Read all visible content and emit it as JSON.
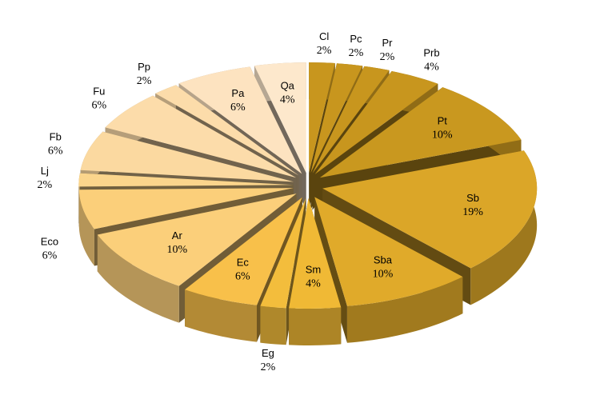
{
  "chart_data": {
    "type": "pie3d",
    "categories": [
      "Cl",
      "Pc",
      "Pr",
      "Prb",
      "Pt",
      "Sb",
      "Sba",
      "Sm",
      "Eg",
      "Ec",
      "Ar",
      "Eco",
      "Lj",
      "Fb",
      "Fu",
      "Pp",
      "Pa",
      "Qa"
    ],
    "values": [
      2,
      2,
      2,
      4,
      10,
      19,
      10,
      4,
      2,
      6,
      10,
      6,
      2,
      6,
      6,
      2,
      6,
      4
    ],
    "value_labels": [
      "2%",
      "2%",
      "2%",
      "4%",
      "10%",
      "19%",
      "10%",
      "4%",
      "2%",
      "6%",
      "10%",
      "6%",
      "2%",
      "6%",
      "6%",
      "2%",
      "6%",
      "4%"
    ],
    "colors": [
      "#c8961e",
      "#c8961e",
      "#c8961e",
      "#c8961e",
      "#c9981f",
      "#dba628",
      "#e0aa2a",
      "#f0b935",
      "#f3bd3c",
      "#f8c04a",
      "#fbcf7a",
      "#fbcf7a",
      "#fbd58c",
      "#fbd9a0",
      "#fcdcaa",
      "#fcdcaa",
      "#fde3c0",
      "#fde8cc"
    ]
  }
}
